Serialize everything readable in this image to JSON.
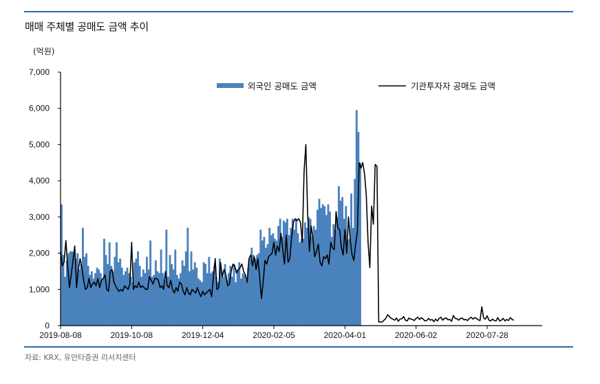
{
  "header": {
    "title": "매매 주체별 공매도 금액 추이",
    "unit": "(억원)"
  },
  "footer": {
    "source": "자료: KRX, 유안타증권 리서치센터"
  },
  "colors": {
    "rule": "#2f6aa6",
    "bar": "#4a82bd",
    "line": "#000000"
  },
  "chart_data": {
    "type": "bar+line",
    "title": "매매 주체별 공매도 금액 추이",
    "ylabel": "(억원)",
    "xlabel": "",
    "ylim": [
      0,
      7000
    ],
    "yticks": [
      0,
      1000,
      2000,
      3000,
      4000,
      5000,
      6000,
      7000
    ],
    "ytick_labels": [
      "0",
      "1,000",
      "2,000",
      "3,000",
      "4,000",
      "5,000",
      "6,000",
      "7,000"
    ],
    "xtick_labels": [
      "2019-08-08",
      "2019-10-08",
      "2019-12-04",
      "2020-02-05",
      "2020-04-01",
      "2020-06-02",
      "2020-07-28"
    ],
    "xtick_index": [
      0,
      40,
      80,
      120,
      160,
      200,
      240
    ],
    "grid": false,
    "legend_position": "top-right inside",
    "series": [
      {
        "name": "외국인 공매도 금액",
        "kind": "bar",
        "values": [
          3350,
          1950,
          1350,
          1800,
          2000,
          2050,
          2050,
          2000,
          1850,
          2000,
          1550,
          1700,
          2700,
          1900,
          2000,
          1650,
          1400,
          1500,
          1300,
          1450,
          1600,
          1550,
          1450,
          1300,
          2400,
          1950,
          1700,
          2300,
          1650,
          1500,
          1900,
          2300,
          1750,
          1850,
          1600,
          1400,
          1500,
          1600,
          1450,
          1350,
          1200,
          1750,
          1850,
          2050,
          1650,
          1350,
          1550,
          1450,
          1900,
          1550,
          2350,
          1350,
          1400,
          1800,
          1500,
          1450,
          2100,
          1450,
          1250,
          2650,
          1350,
          1950,
          1700,
          1550,
          2100,
          1400,
          1300,
          1450,
          1800,
          1650,
          2050,
          2700,
          1500,
          2050,
          1550,
          1750,
          1600,
          1300,
          1250,
          1200,
          1750,
          1700,
          1450,
          1900,
          1450,
          1500,
          1650,
          1350,
          1200,
          1850,
          1500,
          1350,
          1700,
          1250,
          1450,
          1650,
          1350,
          1700,
          1200,
          1550,
          1750,
          1300,
          1450,
          1400,
          1250,
          1600,
          1850,
          2150,
          1950,
          1850,
          1950,
          2000,
          2650,
          2350,
          2450,
          2150,
          2250,
          2700,
          2500,
          2550,
          2400,
          2350,
          2750,
          2950,
          2450,
          2900,
          2850,
          2950,
          2500,
          2700,
          2950,
          2650,
          2950,
          2550,
          2300,
          2400,
          2400,
          2850,
          2700,
          3000,
          2950,
          2450,
          2750,
          2650,
          3200,
          3500,
          3250,
          3350,
          3300,
          3050,
          3350,
          3150,
          2450,
          2800,
          2650,
          3000,
          3850,
          3450,
          3550,
          2950,
          3300,
          2350,
          2400,
          3650,
          2700,
          4050,
          5950,
          5350,
          4500
        ]
      },
      {
        "name": "기관투자자 공매도 금액",
        "kind": "line",
        "values": [
          2050,
          1650,
          1750,
          2350,
          1650,
          1050,
          1400,
          1800,
          2200,
          1050,
          1550,
          1850,
          1600,
          1250,
          1000,
          1050,
          1300,
          1050,
          1150,
          1200,
          1100,
          1300,
          1050,
          1250,
          1300,
          1400,
          1000,
          950,
          1500,
          1550,
          1200,
          1100,
          1000,
          950,
          1000,
          950,
          1100,
          1050,
          1000,
          1150,
          2300,
          1000,
          1100,
          1050,
          1200,
          1050,
          1100,
          1050,
          1000,
          1000,
          1350,
          1250,
          1150,
          1300,
          1300,
          1250,
          1050,
          1100,
          1000,
          1500,
          1100,
          1050,
          1250,
          1000,
          900,
          1050,
          950,
          1200,
          1150,
          950,
          850,
          1050,
          900,
          850,
          1000,
          950,
          900,
          1050,
          900,
          800,
          950,
          850,
          900,
          950,
          1000,
          800,
          1350,
          1850,
          1000,
          1050,
          1750,
          1350,
          1550,
          1400,
          1100,
          1150,
          1500,
          1700,
          1650,
          1450,
          1550,
          1600,
          1700,
          1500,
          1400,
          1200,
          1850,
          1950,
          1650,
          1900,
          1550,
          1850,
          1350,
          750,
          1200,
          1800,
          1700,
          1900,
          1950,
          2000,
          2300,
          1950,
          2200,
          2050,
          2550,
          2100,
          1700,
          2500,
          1750,
          1850,
          2450,
          2850,
          2950,
          2900,
          2950,
          2850,
          2300,
          4250,
          5000,
          3100,
          2050,
          2750,
          2400,
          1900,
          2050,
          2250,
          1750,
          1650,
          1900,
          1850,
          1950,
          1700,
          2300,
          2150,
          2100,
          3150,
          2700,
          2650,
          2150,
          1950,
          2650,
          2000,
          3000,
          2350,
          1950,
          1800,
          2250,
          2600,
          4500,
          4350,
          4500,
          4200,
          3600,
          2300,
          1600,
          3300,
          2800,
          4450,
          4400,
          100,
          100,
          100,
          150,
          200,
          300,
          250,
          200,
          180,
          150,
          210,
          120,
          180,
          190,
          250,
          150,
          130,
          210,
          180,
          170,
          140,
          200,
          230,
          170,
          220,
          180,
          130,
          140,
          200,
          150,
          170,
          110,
          180,
          130,
          200,
          230,
          150,
          200,
          210,
          160,
          170,
          120,
          280,
          200,
          190,
          150,
          200,
          210,
          160,
          170,
          140,
          200,
          230,
          180,
          220,
          200,
          160,
          140,
          520,
          210,
          180,
          270,
          150,
          130,
          180,
          140,
          130,
          220,
          130,
          150,
          200,
          130,
          170,
          140,
          220,
          170,
          150
        ]
      }
    ]
  }
}
